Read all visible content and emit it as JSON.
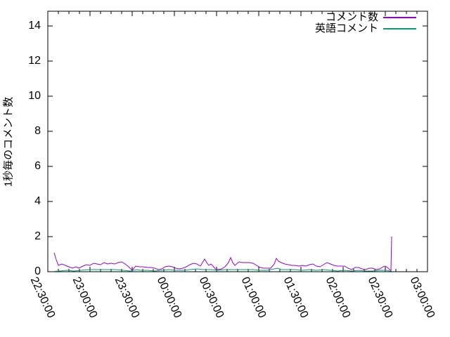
{
  "figure": {
    "background": "#ffffff",
    "axis_color": "#000000"
  },
  "chart_data": {
    "type": "line",
    "title": "",
    "xlabel": "",
    "ylabel": "1秒毎のコメント数",
    "grid": false,
    "legend_position": "top-right-inside",
    "x_axis": {
      "tick_labels": [
        "22:30:00",
        "23:00:00",
        "23:30:00",
        "00:00:00",
        "00:30:00",
        "01:00:00",
        "01:30:00",
        "02:00:00",
        "02:30:00",
        "03:00:00"
      ],
      "tick_minutes": [
        0,
        30,
        60,
        90,
        120,
        150,
        180,
        210,
        240,
        270
      ],
      "minor_step_minutes": 7.5,
      "range_minutes": [
        0,
        270
      ]
    },
    "y_axis": {
      "ticks": [
        0,
        2,
        4,
        6,
        8,
        10,
        12,
        14
      ],
      "range": [
        0,
        14.84
      ]
    },
    "series": [
      {
        "name": "コメント数",
        "color": "#9400d3",
        "points": [
          [
            4.5,
            1.08
          ],
          [
            6,
            0.68
          ],
          [
            7.5,
            0.36
          ],
          [
            10,
            0.44
          ],
          [
            12.5,
            0.36
          ],
          [
            15,
            0.28
          ],
          [
            17.5,
            0.2
          ],
          [
            20,
            0.28
          ],
          [
            22,
            0.2
          ],
          [
            25,
            0.32
          ],
          [
            27.5,
            0.4
          ],
          [
            30,
            0.36
          ],
          [
            32.5,
            0.48
          ],
          [
            35,
            0.44
          ],
          [
            37.5,
            0.4
          ],
          [
            40,
            0.52
          ],
          [
            42.5,
            0.44
          ],
          [
            45,
            0.48
          ],
          [
            47.5,
            0.44
          ],
          [
            50,
            0.52
          ],
          [
            52.5,
            0.56
          ],
          [
            55,
            0.44
          ],
          [
            57.5,
            0.28
          ],
          [
            60,
            0.08
          ],
          [
            62.5,
            0.32
          ],
          [
            65,
            0.28
          ],
          [
            67.5,
            0.28
          ],
          [
            71,
            0.24
          ],
          [
            73.5,
            0.24
          ],
          [
            76,
            0.2
          ],
          [
            78.5,
            0.12
          ],
          [
            81,
            0.16
          ],
          [
            83.5,
            0.28
          ],
          [
            86,
            0.32
          ],
          [
            88.5,
            0.28
          ],
          [
            91,
            0.2
          ],
          [
            93.5,
            0.16
          ],
          [
            96,
            0.2
          ],
          [
            98.5,
            0.28
          ],
          [
            101,
            0.4
          ],
          [
            103.5,
            0.48
          ],
          [
            106,
            0.44
          ],
          [
            108.5,
            0.32
          ],
          [
            110,
            0.52
          ],
          [
            111.5,
            0.72
          ],
          [
            113,
            0.52
          ],
          [
            114.5,
            0.36
          ],
          [
            116,
            0.44
          ],
          [
            117.5,
            0.32
          ],
          [
            119,
            0.16
          ],
          [
            121,
            0.12
          ],
          [
            123.5,
            0.16
          ],
          [
            126,
            0.28
          ],
          [
            128.5,
            0.52
          ],
          [
            130,
            0.8
          ],
          [
            131.5,
            0.52
          ],
          [
            133,
            0.36
          ],
          [
            136,
            0.56
          ],
          [
            138.5,
            0.52
          ],
          [
            141,
            0.52
          ],
          [
            143.5,
            0.52
          ],
          [
            146,
            0.48
          ],
          [
            148.5,
            0.36
          ],
          [
            151,
            0.24
          ],
          [
            153.5,
            0.2
          ],
          [
            156,
            0.2
          ],
          [
            158.5,
            0.2
          ],
          [
            161,
            0.44
          ],
          [
            162.5,
            0.76
          ],
          [
            164,
            0.6
          ],
          [
            166,
            0.52
          ],
          [
            168.5,
            0.44
          ],
          [
            171,
            0.4
          ],
          [
            173.5,
            0.36
          ],
          [
            176,
            0.36
          ],
          [
            178.5,
            0.32
          ],
          [
            181,
            0.36
          ],
          [
            183.5,
            0.32
          ],
          [
            186,
            0.4
          ],
          [
            188.5,
            0.44
          ],
          [
            191,
            0.32
          ],
          [
            193.5,
            0.28
          ],
          [
            196,
            0.4
          ],
          [
            198.5,
            0.52
          ],
          [
            201,
            0.44
          ],
          [
            203.5,
            0.36
          ],
          [
            206,
            0.32
          ],
          [
            208.5,
            0.32
          ],
          [
            211,
            0.32
          ],
          [
            213.5,
            0.2
          ],
          [
            216,
            0.12
          ],
          [
            218.5,
            0.24
          ],
          [
            221,
            0.24
          ],
          [
            223.5,
            0.16
          ],
          [
            226,
            0.12
          ],
          [
            228.5,
            0.2
          ],
          [
            231,
            0.2
          ],
          [
            233.5,
            0.12
          ],
          [
            236,
            0.16
          ],
          [
            238.5,
            0.28
          ],
          [
            240,
            0.32
          ],
          [
            241.5,
            0.24
          ],
          [
            243,
            0.12
          ],
          [
            244,
            0.08
          ],
          [
            244.5,
            2.0
          ]
        ]
      },
      {
        "name": "英語コメント",
        "color": "#009e73",
        "points": [
          [
            4.5,
            0.02
          ],
          [
            8.5,
            0.04
          ],
          [
            13.5,
            0.08
          ],
          [
            18.5,
            0.04
          ],
          [
            23.5,
            0.08
          ],
          [
            28.5,
            0.12
          ],
          [
            33.5,
            0.12
          ],
          [
            38.5,
            0.12
          ],
          [
            43.5,
            0.12
          ],
          [
            48.5,
            0.12
          ],
          [
            53.5,
            0.08
          ],
          [
            58.5,
            0.04
          ],
          [
            61,
            0.08
          ],
          [
            63.5,
            0.12
          ],
          [
            66,
            0.08
          ],
          [
            71,
            0.08
          ],
          [
            76,
            0.04
          ],
          [
            81,
            0.08
          ],
          [
            86,
            0.12
          ],
          [
            91,
            0.08
          ],
          [
            96,
            0.08
          ],
          [
            101,
            0.12
          ],
          [
            106,
            0.16
          ],
          [
            111,
            0.12
          ],
          [
            116,
            0.12
          ],
          [
            121,
            0.08
          ],
          [
            126,
            0.12
          ],
          [
            131,
            0.12
          ],
          [
            136,
            0.12
          ],
          [
            141,
            0.12
          ],
          [
            146,
            0.12
          ],
          [
            151,
            0.08
          ],
          [
            156,
            0.08
          ],
          [
            161,
            0.16
          ],
          [
            163.5,
            0.2
          ],
          [
            166,
            0.12
          ],
          [
            171,
            0.12
          ],
          [
            176,
            0.12
          ],
          [
            181,
            0.08
          ],
          [
            186,
            0.12
          ],
          [
            191,
            0.08
          ],
          [
            196,
            0.12
          ],
          [
            201,
            0.08
          ],
          [
            206,
            0.04
          ],
          [
            211,
            0.08
          ],
          [
            216,
            0.04
          ],
          [
            221,
            0.08
          ],
          [
            226,
            0.04
          ],
          [
            231,
            0.04
          ],
          [
            236,
            0.08
          ],
          [
            241,
            0.08
          ],
          [
            243,
            0.04
          ],
          [
            244.5,
            0.04
          ]
        ]
      }
    ]
  }
}
